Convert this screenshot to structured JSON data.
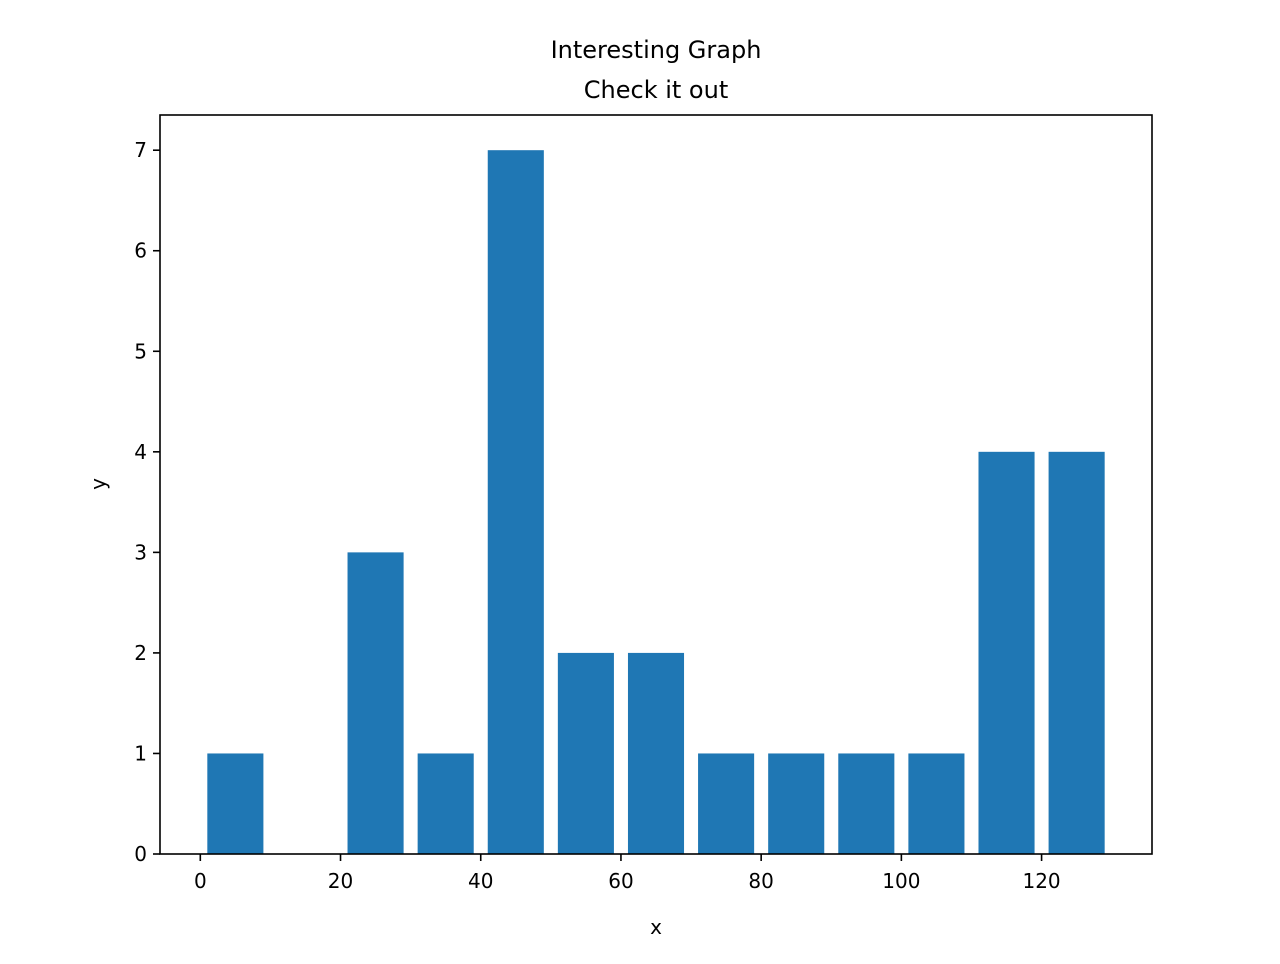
{
  "chart_data": {
    "type": "bar",
    "title": "Interesting Graph",
    "subtitle": "Check it out",
    "xlabel": "x",
    "ylabel": "y",
    "x": [
      5,
      25,
      35,
      45,
      55,
      65,
      75,
      85,
      95,
      105,
      115,
      125
    ],
    "values": [
      1,
      3,
      1,
      7,
      2,
      2,
      1,
      1,
      1,
      1,
      4,
      4
    ],
    "bar_width": 8,
    "xlim": [
      -5.75,
      135.75
    ],
    "ylim": [
      0,
      7.35
    ],
    "xticks": [
      0,
      20,
      40,
      60,
      80,
      100,
      120
    ],
    "yticks": [
      0,
      1,
      2,
      3,
      4,
      5,
      6,
      7
    ],
    "bar_color": "#1f77b4",
    "grid": false,
    "legend": "none"
  }
}
